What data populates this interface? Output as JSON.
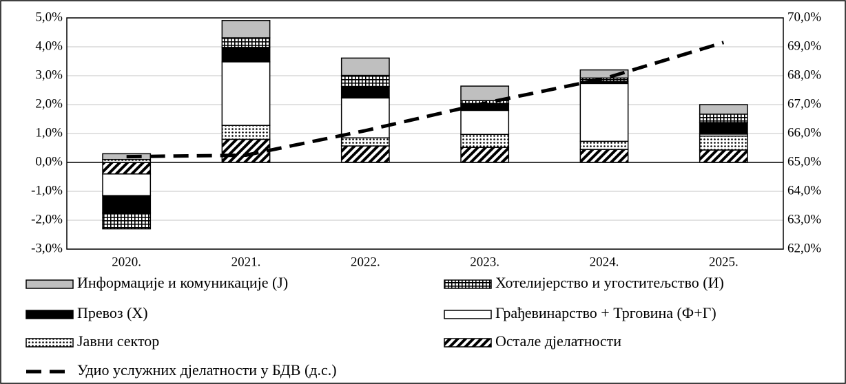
{
  "chart_data": {
    "type": "bar",
    "categories": [
      "2020.",
      "2021.",
      "2022.",
      "2023.",
      "2024.",
      "2025."
    ],
    "stacked": true,
    "series": [
      {
        "name": "Остале дјелатности",
        "color": "#000000",
        "pattern": "hatch",
        "values": [
          -0.4,
          0.8,
          0.57,
          0.52,
          0.45,
          0.43
        ]
      },
      {
        "name": "Јавни сектор",
        "color": "#000000",
        "pattern": "dots",
        "values": [
          0.1,
          0.48,
          0.28,
          0.45,
          0.28,
          0.48
        ]
      },
      {
        "name": "Грађевинарство + Трговина (Ф+Г)",
        "color": "#ffffff",
        "pattern": "solid",
        "values": [
          -0.75,
          2.2,
          1.38,
          0.83,
          2.0,
          0.07
        ]
      },
      {
        "name": "Превоз (Х)",
        "color": "#000000",
        "pattern": "solid",
        "values": [
          -0.6,
          0.5,
          0.4,
          0.24,
          0.07,
          0.4
        ]
      },
      {
        "name": "Хотелијерство и угоститељство (И)",
        "color": "#000000",
        "pattern": "grid",
        "values": [
          -0.55,
          0.33,
          0.38,
          0.1,
          0.12,
          0.29
        ]
      },
      {
        "name": "Информације и комуникације (Ј)",
        "color": "#bfbfbf",
        "pattern": "solid",
        "values": [
          0.2,
          0.6,
          0.6,
          0.5,
          0.28,
          0.33
        ]
      },
      {
        "name": "Удио услужних дјелатности у БДВ (д.с.)",
        "type": "line",
        "axis": "y2",
        "color": "#000000",
        "dashed": true,
        "values": [
          65.2,
          65.25,
          66.1,
          67.05,
          67.9,
          69.15
        ]
      }
    ],
    "ylim": [
      -3,
      5
    ],
    "yticks": [
      {
        "value": -3,
        "label": "-3,0%"
      },
      {
        "value": -2,
        "label": "-2,0%"
      },
      {
        "value": -1,
        "label": "-1,0%"
      },
      {
        "value": 0,
        "label": "0,0%"
      },
      {
        "value": 1,
        "label": "1,0%"
      },
      {
        "value": 2,
        "label": "2,0%"
      },
      {
        "value": 3,
        "label": "3,0%"
      },
      {
        "value": 4,
        "label": "4,0%"
      },
      {
        "value": 5,
        "label": "5,0%"
      }
    ],
    "y2lim": [
      62,
      70
    ],
    "y2ticks": [
      {
        "value": 62,
        "label": "62,0%"
      },
      {
        "value": 63,
        "label": "63,0%"
      },
      {
        "value": 64,
        "label": "64,0%"
      },
      {
        "value": 65,
        "label": "65,0%"
      },
      {
        "value": 66,
        "label": "66,0%"
      },
      {
        "value": 67,
        "label": "67,0%"
      },
      {
        "value": 68,
        "label": "68,0%"
      },
      {
        "value": 69,
        "label": "69,0%"
      },
      {
        "value": 70,
        "label": "70,0%"
      }
    ],
    "grid": true,
    "legend": "bottom"
  }
}
